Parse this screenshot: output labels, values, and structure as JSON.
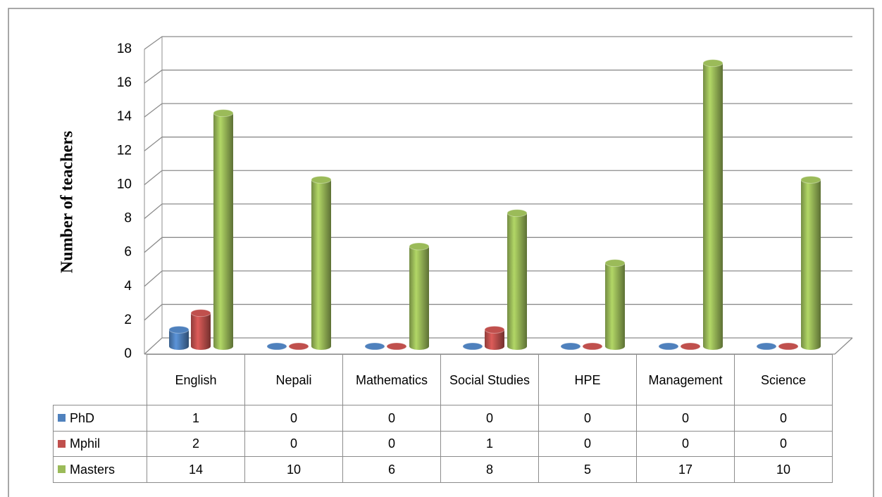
{
  "chart_data": {
    "type": "bar",
    "y_axis_label": "Number of teachers",
    "categories": [
      "English",
      "Nepali",
      "Mathematics",
      "Social Studies",
      "HPE",
      "Management",
      "Science"
    ],
    "series": [
      {
        "name": "PhD",
        "color": "#4f81bd",
        "values": [
          1,
          0,
          0,
          0,
          0,
          0,
          0
        ]
      },
      {
        "name": "Mphil",
        "color": "#c0504d",
        "values": [
          2,
          0,
          0,
          1,
          0,
          0,
          0
        ]
      },
      {
        "name": "Masters",
        "color": "#9bbb59",
        "values": [
          14,
          10,
          6,
          8,
          5,
          17,
          10
        ]
      }
    ],
    "ylim": [
      0,
      18
    ],
    "yticks": [
      0,
      2,
      4,
      6,
      8,
      10,
      12,
      14,
      16,
      18
    ],
    "grid": true
  }
}
